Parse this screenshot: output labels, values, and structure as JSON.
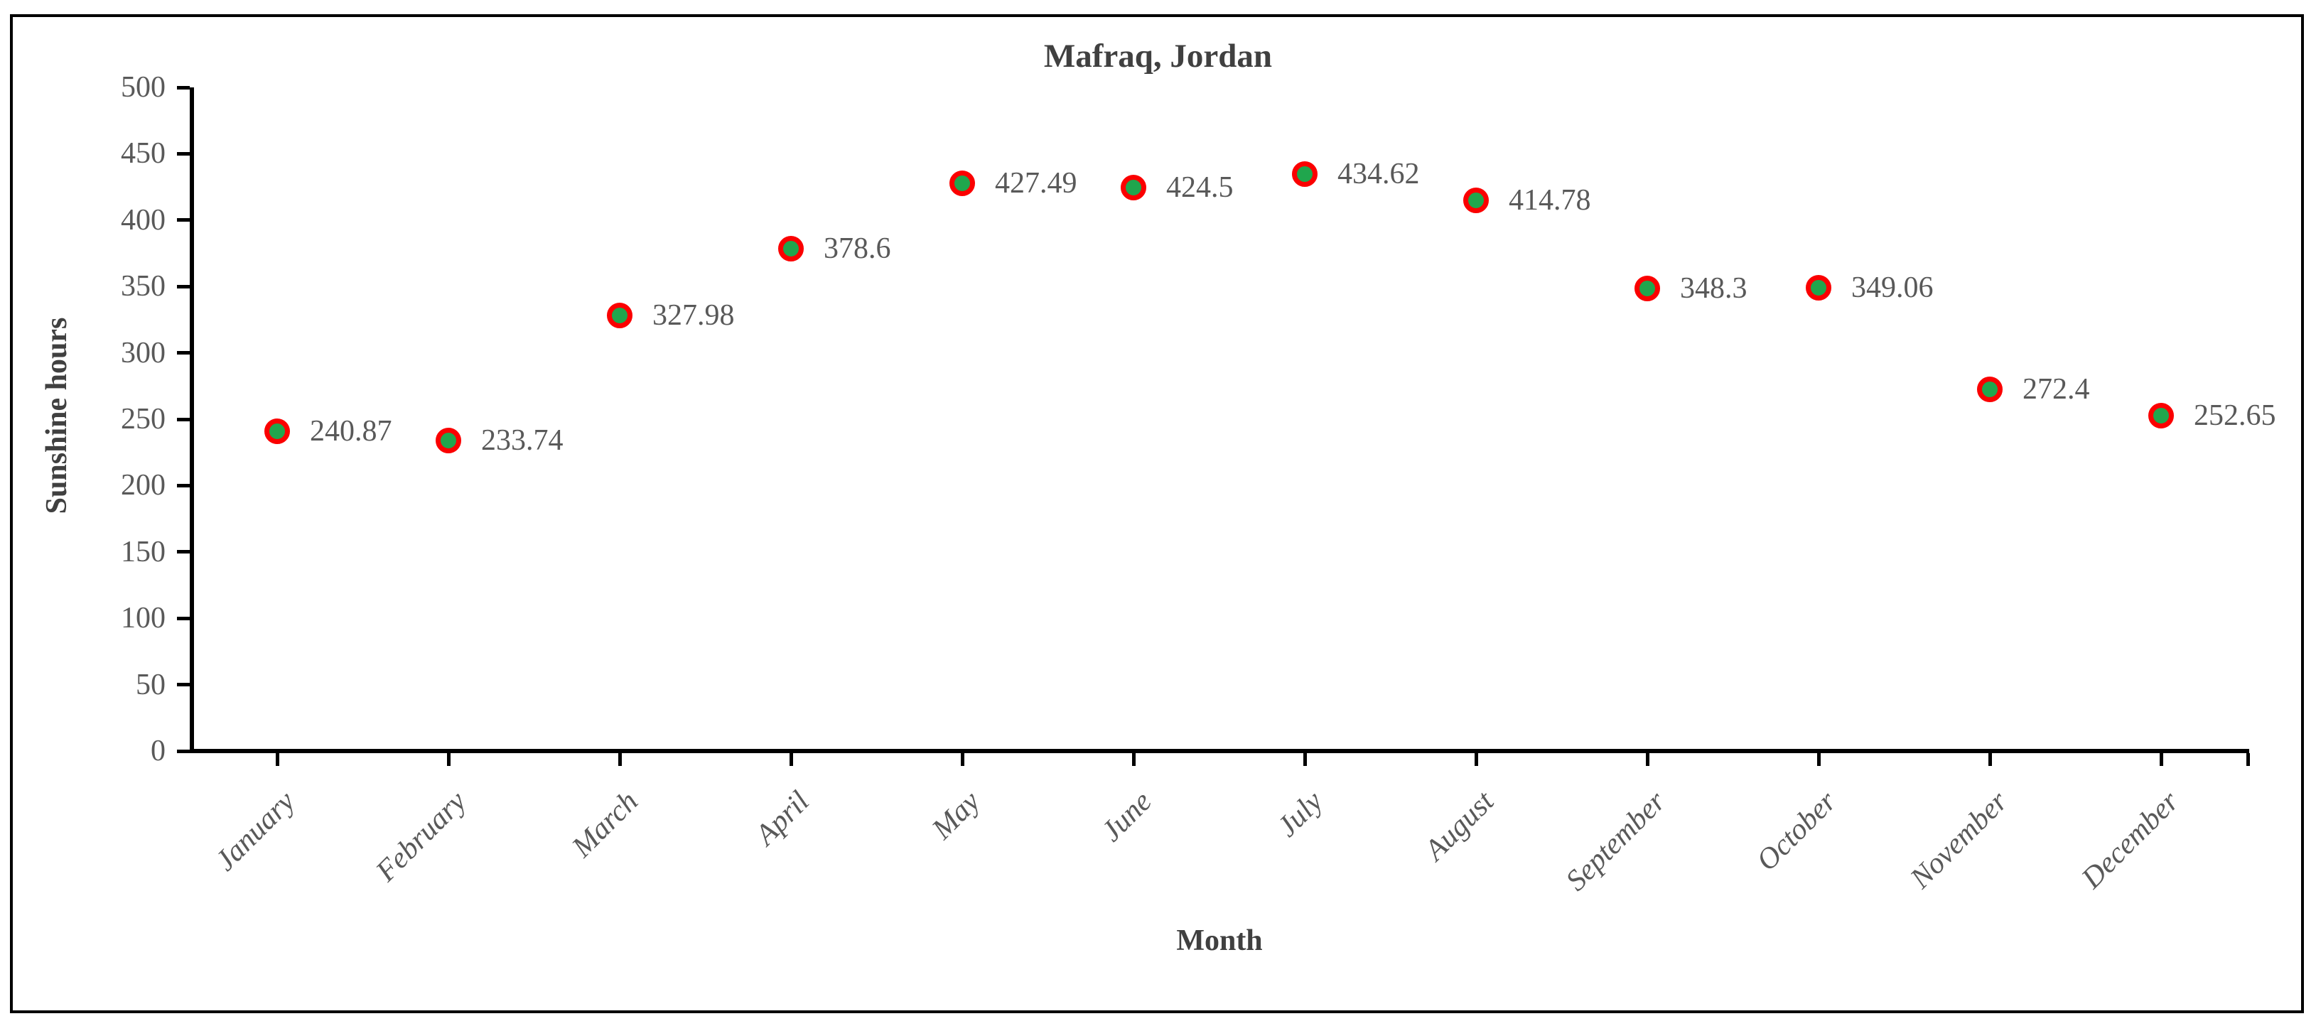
{
  "chart_data": {
    "type": "scatter",
    "title": "Mafraq, Jordan",
    "xlabel": "Month",
    "ylabel": "Sunshine hours",
    "categories": [
      "January",
      "February",
      "March",
      "April",
      "May",
      "June",
      "July",
      "August",
      "September",
      "October",
      "November",
      "December"
    ],
    "values": [
      240.87,
      233.74,
      327.98,
      378.6,
      427.49,
      424.5,
      434.62,
      414.78,
      348.3,
      349.06,
      272.4,
      252.65
    ],
    "data_labels": [
      "240.87",
      "233.74",
      "327.98",
      "378.6",
      "427.49",
      "424.5",
      "434.62",
      "414.78",
      "348.3",
      "349.06",
      "272.4",
      "252.65"
    ],
    "ylim": [
      0,
      500
    ],
    "yticks": [
      0,
      50,
      100,
      150,
      200,
      250,
      300,
      350,
      400,
      450,
      500
    ],
    "grid": false,
    "legend": false,
    "marker": {
      "fill": "#20A64D",
      "stroke": "#FB0000"
    },
    "colors": {
      "axis_line": "#000000",
      "tick_label": "#595959",
      "data_label": "#595959",
      "title": "#404040"
    }
  }
}
